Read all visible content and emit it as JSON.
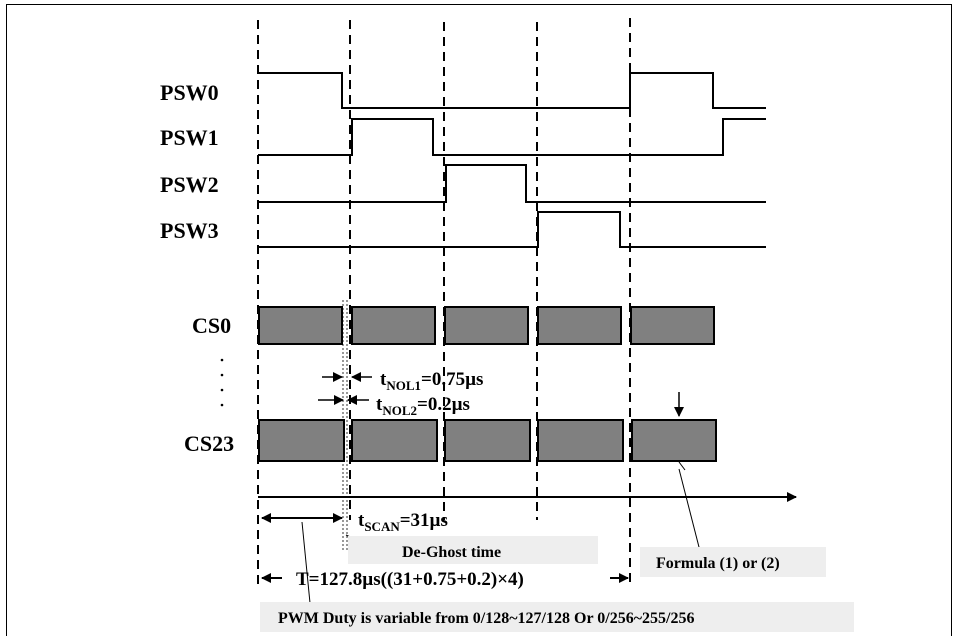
{
  "signals": {
    "psw0": "PSW0",
    "psw1": "PSW1",
    "psw2": "PSW2",
    "psw3": "PSW3",
    "cs0": "CS0",
    "cs23": "CS23"
  },
  "annotations": {
    "tnol1_main": "t",
    "tnol1_sub": "NOL1",
    "tnol1_value": "=0.75µs",
    "tnol2_main": "t",
    "tnol2_sub": "NOL2",
    "tnol2_value": "=0.2µs",
    "tscan_main": "t",
    "tscan_sub": "SCAN",
    "tscan_value": "=31µs",
    "period": "T=127.8µs((31+0.75+0.2)×4)"
  },
  "notes": {
    "deghost": "De-Ghost time",
    "formula": "Formula (1) or (2)",
    "pwm": "PWM Duty is variable from 0/128~127/128 Or 0/256~255/256"
  },
  "colors": {
    "block_fill": "#808080",
    "note_fill": "#eeeeee",
    "line": "#000000"
  }
}
